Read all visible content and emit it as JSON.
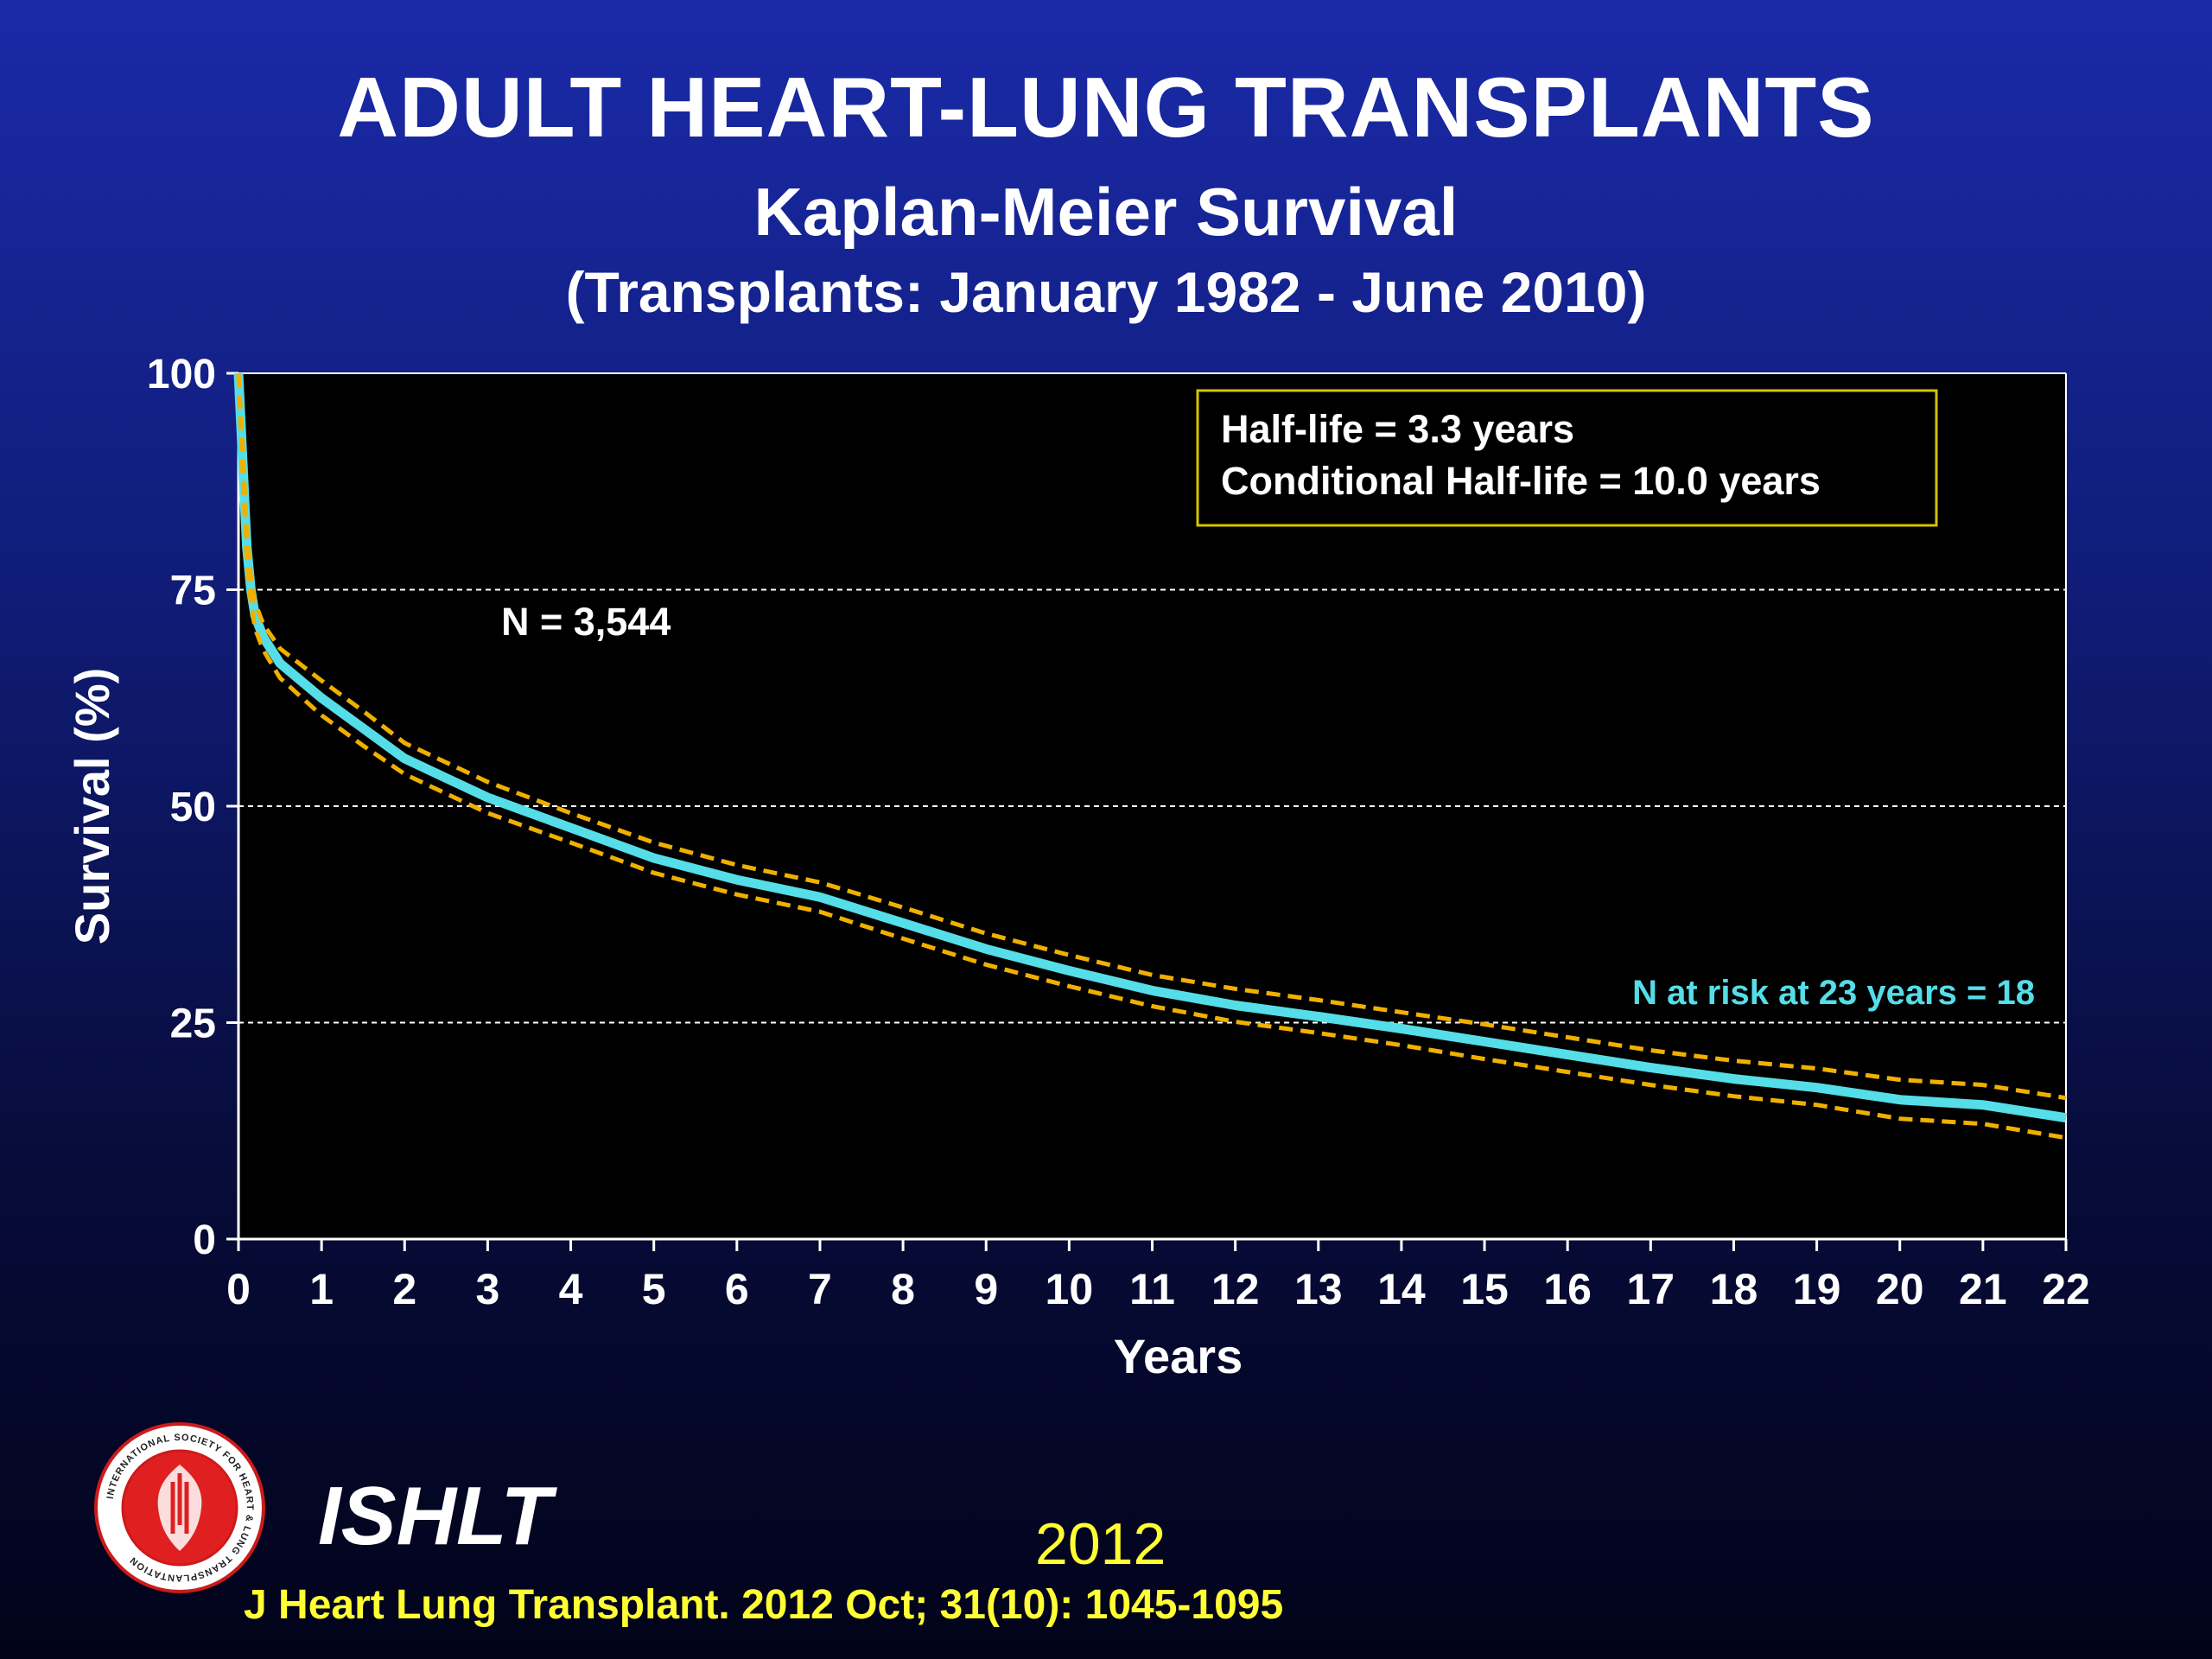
{
  "slide": {
    "title": "ADULT HEART-LUNG TRANSPLANTS",
    "subtitle": "Kaplan-Meier Survival",
    "subtitle2": "(Transplants: January 1982 - June 2010)",
    "org": "ISHLT",
    "year": "2012",
    "citation": "J Heart Lung Transplant.  2012 Oct; 31(10): 1045-1095",
    "logo_text": "INTERNATIONAL SOCIETY FOR HEART & LUNG TRANSPLANTATION"
  },
  "colors": {
    "plot_bg": "#000000",
    "survival_line": "#55dde8",
    "ci_line": "#f0b000",
    "annotation_box_border": "#d4c400",
    "n_at_risk_text": "#55dde8",
    "grid": "#ffffff",
    "axis_text": "#ffffff"
  },
  "chart_data": {
    "type": "line",
    "xlabel": "Years",
    "ylabel": "Survival (%)",
    "xlim": [
      0,
      22
    ],
    "ylim": [
      0,
      100
    ],
    "xticks": [
      0,
      1,
      2,
      3,
      4,
      5,
      6,
      7,
      8,
      9,
      10,
      11,
      12,
      13,
      14,
      15,
      16,
      17,
      18,
      19,
      20,
      21,
      22
    ],
    "yticks": [
      0,
      25,
      50,
      75,
      100
    ],
    "grid": "horizontal dashed at 25, 50, 75",
    "annotations": {
      "half_life": "Half-life =  3.3 years",
      "conditional_half_life": "Conditional Half-life = 10.0 years",
      "n_total": "N = 3,544",
      "n_at_risk": "N at risk at 23 years = 18"
    },
    "series": [
      {
        "x": [
          0,
          0.05,
          0.1,
          0.15,
          0.2,
          0.3,
          0.5,
          1,
          1.5,
          2,
          3,
          4,
          5,
          6,
          7,
          8,
          9,
          10,
          11,
          12,
          13,
          14,
          15,
          16,
          17,
          18,
          19,
          20,
          21,
          22
        ],
        "y": [
          100,
          90,
          80,
          75,
          72,
          69.5,
          66.5,
          62.5,
          59,
          55.5,
          51,
          47.5,
          44,
          41.5,
          39.5,
          36.5,
          33.5,
          31,
          28.7,
          27,
          25.7,
          24.3,
          22.8,
          21.3,
          19.8,
          18.5,
          17.5,
          16.1,
          15.5,
          14
        ]
      },
      {
        "x": [
          0,
          0.05,
          0.1,
          0.15,
          0.2,
          0.3,
          0.5,
          1,
          1.5,
          2,
          3,
          4,
          5,
          6,
          7,
          8,
          9,
          10,
          11,
          12,
          13,
          14,
          15,
          16,
          17,
          18,
          19,
          20,
          21,
          22
        ],
        "y": [
          100,
          91.5,
          81.5,
          76.5,
          73.5,
          71,
          68.2,
          64.5,
          61,
          57.3,
          52.8,
          49.2,
          45.8,
          43.2,
          41.2,
          38.3,
          35.3,
          32.8,
          30.5,
          28.9,
          27.6,
          26.2,
          24.8,
          23.3,
          21.8,
          20.6,
          19.7,
          18.4,
          17.8,
          16.3
        ]
      },
      {
        "x": [
          0,
          0.05,
          0.1,
          0.15,
          0.2,
          0.3,
          0.5,
          1,
          1.5,
          2,
          3,
          4,
          5,
          6,
          7,
          8,
          9,
          10,
          11,
          12,
          13,
          14,
          15,
          16,
          17,
          18,
          19,
          20,
          21,
          22
        ],
        "y": [
          100,
          88.5,
          78.5,
          73.5,
          70.5,
          68,
          64.8,
          60.5,
          57,
          53.7,
          49.2,
          45.8,
          42.3,
          39.8,
          37.8,
          34.7,
          31.7,
          29.2,
          26.9,
          25.1,
          23.8,
          22.4,
          20.8,
          19.3,
          17.8,
          16.5,
          15.5,
          13.9,
          13.3,
          11.7
        ]
      }
    ]
  }
}
